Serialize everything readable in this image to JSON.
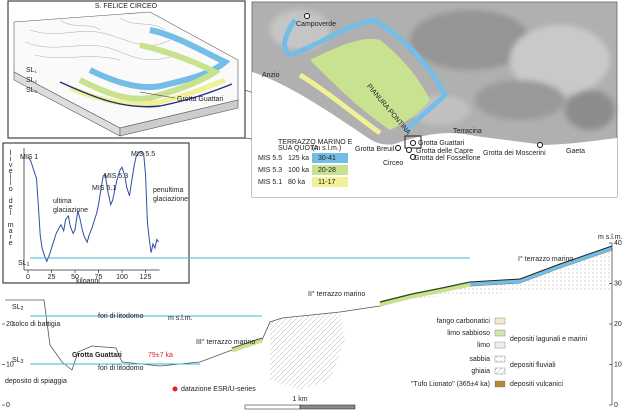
{
  "block_diagram": {
    "title": "S. FELICE CIRCEO",
    "sea_levels": [
      {
        "base": "SL",
        "sub": "1"
      },
      {
        "base": "SL",
        "sub": "2"
      },
      {
        "base": "SL",
        "sub": "3"
      }
    ],
    "cave": "Grotta Guattari"
  },
  "map": {
    "places": [
      "Campoverde",
      "Anzio",
      "PIANURA PONTINA",
      "Terracina",
      "Grotta Breuil",
      "Circeo",
      "Grotta Guattari",
      "Grotta delle Capre",
      "Grotta del Fossellone",
      "Grotta dei Moscerini",
      "Gaeta"
    ],
    "legend": {
      "header": [
        "TERRAZZO MARINO E",
        "SUA QUOTA",
        "(m s.l.m.)"
      ],
      "rows": [
        {
          "stage": "MIS 5.5",
          "age": "125 ka",
          "range": "30-41",
          "color": "#74bde6"
        },
        {
          "stage": "MIS 5.3",
          "age": "100 ka",
          "range": "20-28",
          "color": "#c8e28f"
        },
        {
          "stage": "MIS 5.1",
          "age": "80 ka",
          "range": "11-17",
          "color": "#f0f096"
        }
      ]
    }
  },
  "sea_level": {
    "type": "line",
    "ylabel": "livello del mare",
    "xlabel": "kiloanni",
    "x": [
      0,
      3,
      6,
      9,
      11,
      13,
      15,
      18,
      20,
      23,
      25,
      28,
      30,
      33,
      35,
      38,
      40,
      43,
      45,
      48,
      50,
      53,
      55,
      58,
      60,
      63,
      65,
      68,
      70,
      73,
      75,
      78,
      80,
      82,
      85,
      88,
      90,
      93,
      95,
      98,
      100,
      103,
      105,
      108,
      110,
      113,
      115,
      118,
      120,
      123,
      125,
      127,
      129,
      131,
      133,
      135,
      137,
      139
    ],
    "values": [
      0,
      -5,
      -15,
      -25,
      -55,
      -90,
      -105,
      -115,
      -120,
      -112,
      -105,
      -95,
      -88,
      -82,
      -78,
      -85,
      -72,
      -68,
      -80,
      -88,
      -84,
      -62,
      -70,
      -85,
      -92,
      -98,
      -90,
      -82,
      -75,
      -65,
      -55,
      -35,
      -22,
      -20,
      -40,
      -55,
      -50,
      -35,
      -25,
      -15,
      -12,
      -22,
      -35,
      -45,
      -30,
      -10,
      0,
      5,
      6,
      4,
      -20,
      -75,
      -95,
      -110,
      -100,
      -105,
      -95,
      -98
    ],
    "color": "#2f4fa0",
    "xlim": [
      0,
      140
    ],
    "ylim": [
      -130,
      10
    ],
    "xticks": [
      0,
      25,
      50,
      75,
      100,
      125
    ],
    "annotations": [
      [
        "MIS 1"
      ],
      [
        "ultima",
        "glaciazione"
      ],
      [
        "MIS 5.1"
      ],
      [
        "MIS 5.3"
      ],
      [
        "MIS 5.5"
      ],
      [
        "penultima",
        "glaciazione"
      ]
    ]
  },
  "cross_section": {
    "unit": "m s.l.m.",
    "ylim": [
      0,
      40
    ],
    "right_ticks": [
      0,
      10,
      20,
      30,
      40
    ],
    "left_ticks": [
      0,
      10,
      20
    ],
    "sea_levels": [
      {
        "base": "SL",
        "sub": "1"
      },
      {
        "base": "SL",
        "sub": "2"
      },
      {
        "base": "SL",
        "sub": "3"
      }
    ],
    "terraces": [
      "I° terrazzo marino",
      "II° terrazzo marino",
      "III° terrazzo marino"
    ],
    "features": [
      "solco di battigia",
      "fori di litodomo",
      "fori di litodomo",
      "Grotta Guattari",
      "deposito di spiaggia"
    ],
    "date": "79±7 ka",
    "date_note": "datazione ESR/U-series",
    "scale": "1 km",
    "lithology": [
      "fango carbonatici",
      "limo sabbioso",
      "limo",
      "sabbia",
      "ghiaia",
      "\"Tufo Lionato\" (365±4 ka)"
    ],
    "groups": [
      "depositi lagunali e marini",
      "depositi fluviali",
      "depositi vulcanici"
    ]
  }
}
